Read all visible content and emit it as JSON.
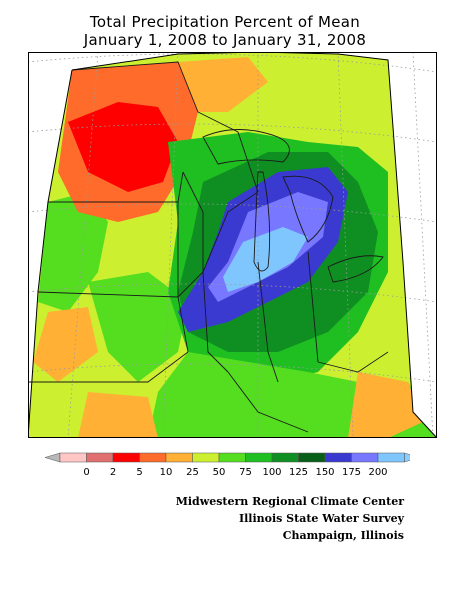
{
  "title": {
    "line1": "Total Precipitation Percent of Mean",
    "line2": "January 1, 2008 to January 31, 2008"
  },
  "legend": {
    "labels": [
      "0",
      "2",
      "5",
      "10",
      "25",
      "50",
      "75",
      "100",
      "125",
      "150",
      "175",
      "200"
    ],
    "colors": [
      "#ffc6c6",
      "#e07070",
      "#ff0000",
      "#ff6b2a",
      "#ffb035",
      "#ccf030",
      "#55dd20",
      "#1fbf22",
      "#0f8f22",
      "#086018",
      "#3a3ad0",
      "#7777ff",
      "#7fc6ff"
    ],
    "under_color": "#b8b8b8",
    "over_color": "#8ccdff"
  },
  "map": {
    "region": "Midwestern United States",
    "background_color": "#ffffff",
    "border_color": "#000000"
  },
  "credits": {
    "line1": "Midwestern Regional Climate Center",
    "line2": "Illinois State Water Survey",
    "line3": "Champaign, Illinois"
  }
}
